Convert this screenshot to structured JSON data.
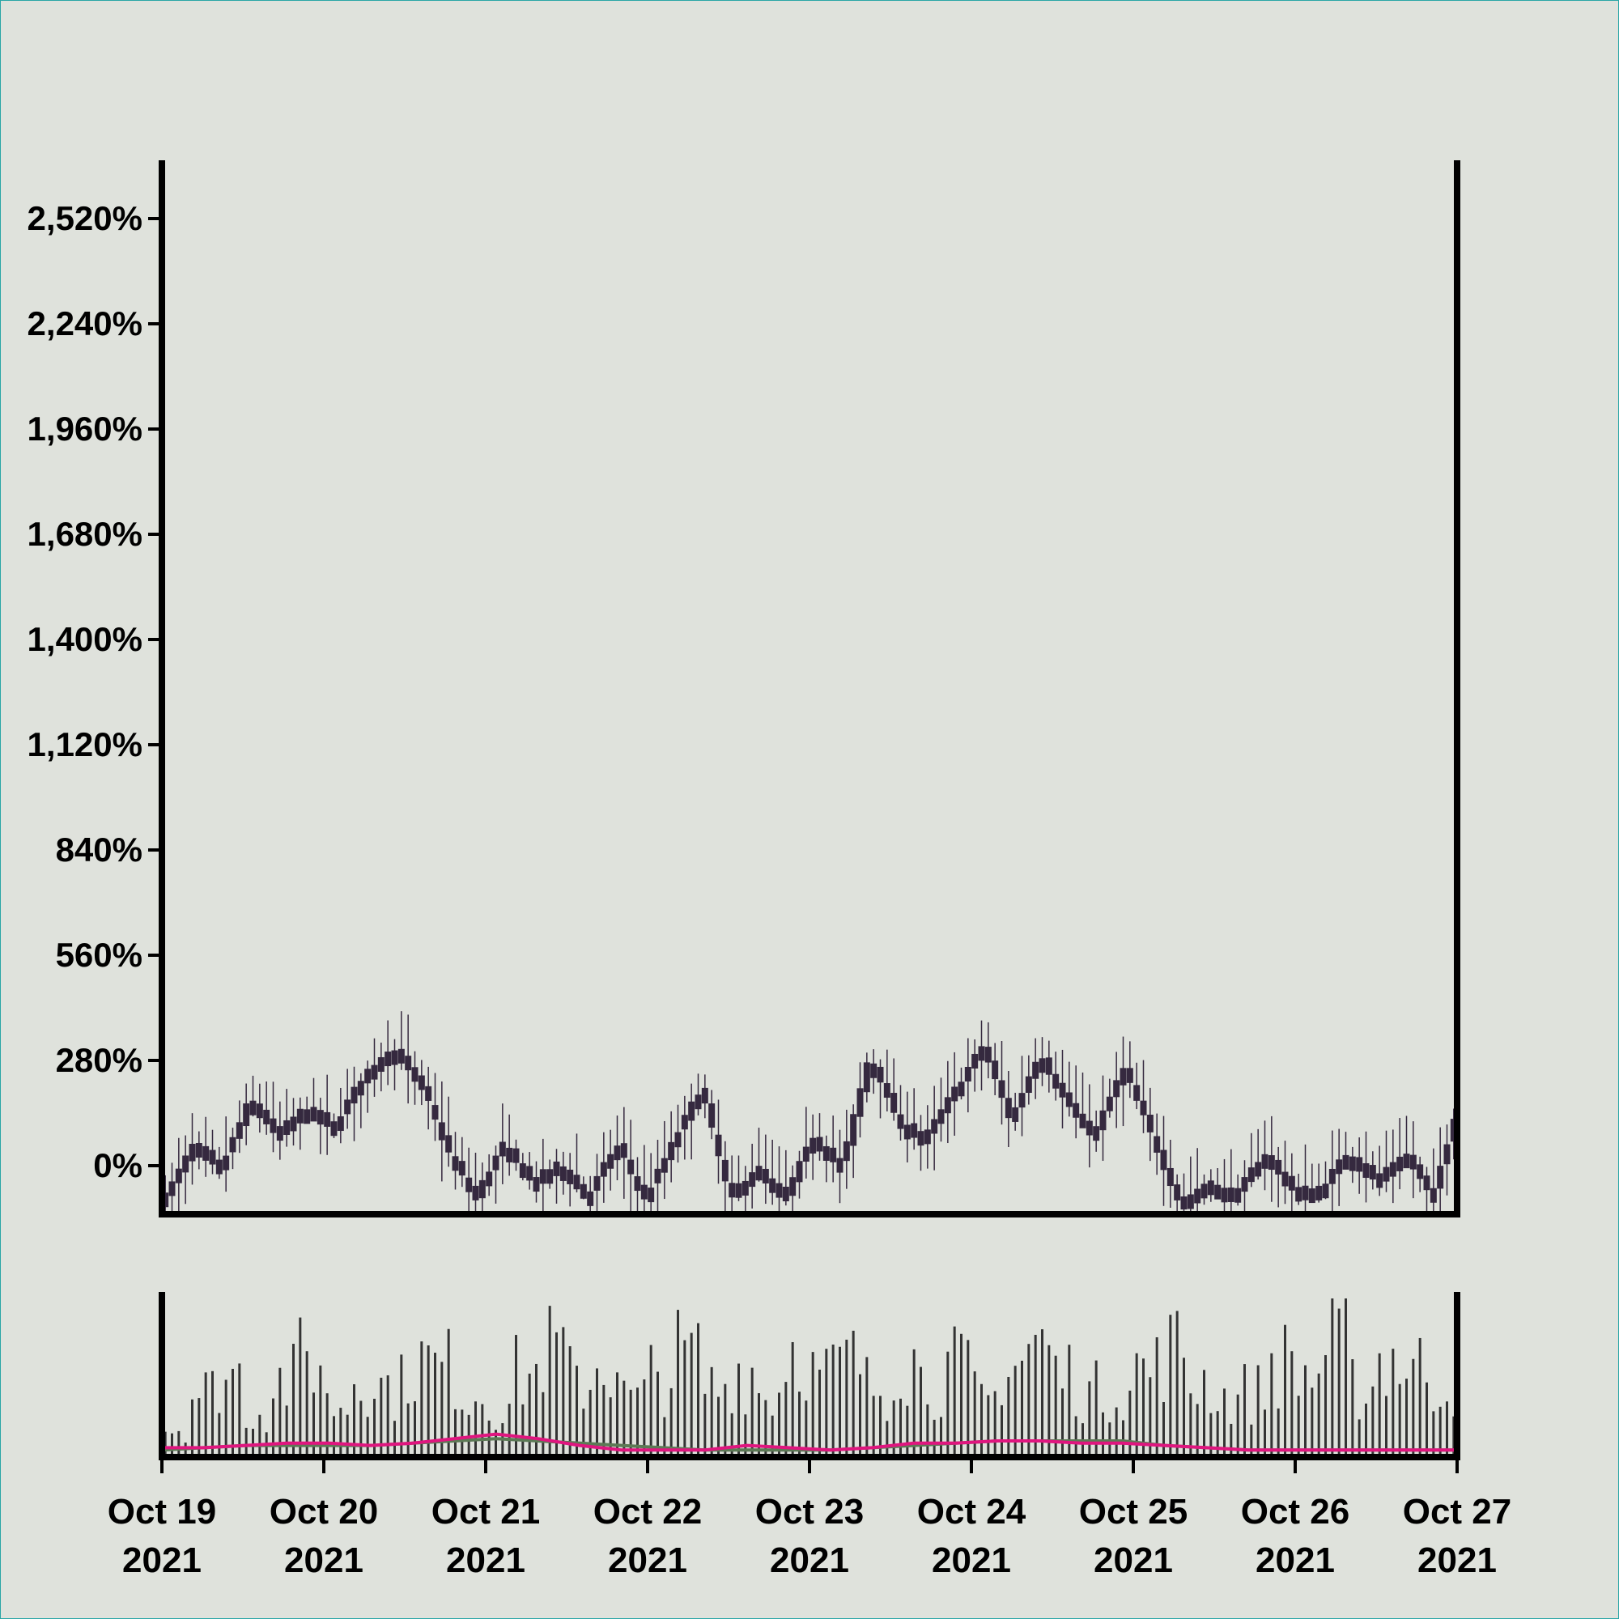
{
  "chart_data": [
    {
      "type": "candlestick",
      "title": "",
      "xlabel": "",
      "ylabel": "",
      "y_unit": "%",
      "ylim": [
        -150,
        2660
      ],
      "xlim": [
        "2021-10-19",
        "2021-10-27"
      ],
      "yticks": [
        0,
        280,
        560,
        840,
        1120,
        1400,
        1680,
        1960,
        2240,
        2520
      ],
      "ytick_labels": [
        "0%",
        "280%",
        "560%",
        "840%",
        "1,120%",
        "1,400%",
        "1,680%",
        "1,960%",
        "2,240%",
        "2,520%"
      ],
      "xtick_labels": [
        [
          "Oct 19",
          "2021"
        ],
        [
          "Oct 20",
          "2021"
        ],
        [
          "Oct 21",
          "2021"
        ],
        [
          "Oct 22",
          "2021"
        ],
        [
          "Oct 23",
          "2021"
        ],
        [
          "Oct 24",
          "2021"
        ],
        [
          "Oct 25",
          "2021"
        ],
        [
          "Oct 26",
          "2021"
        ],
        [
          "Oct 27",
          "2021"
        ]
      ],
      "grid": false,
      "colors": {
        "candle": "#35293f",
        "wick": "#35293f"
      },
      "series_note": "hourly OHLC candles; close level follows the sampled path below (percent)",
      "close_path": [
        {
          "x": "2021-10-19 00:00",
          "y": -80
        },
        {
          "x": "2021-10-19 06:00",
          "y": 60
        },
        {
          "x": "2021-10-19 12:00",
          "y": 0
        },
        {
          "x": "2021-10-19 20:00",
          "y": 180
        },
        {
          "x": "2021-10-20 04:00",
          "y": 90
        },
        {
          "x": "2021-10-20 12:00",
          "y": 160
        },
        {
          "x": "2021-10-20 18:00",
          "y": 110
        },
        {
          "x": "2021-10-21 02:00",
          "y": 240
        },
        {
          "x": "2021-10-21 08:00",
          "y": 320
        },
        {
          "x": "2021-10-21 14:00",
          "y": 230
        },
        {
          "x": "2021-10-21 20:00",
          "y": 40
        },
        {
          "x": "2021-10-22 02:00",
          "y": -80
        },
        {
          "x": "2021-10-22 06:00",
          "y": 60
        },
        {
          "x": "2021-10-22 12:00",
          "y": -40
        },
        {
          "x": "2021-10-22 18:00",
          "y": 10
        },
        {
          "x": "2021-10-23 00:00",
          "y": -80
        },
        {
          "x": "2021-10-23 06:00",
          "y": 60
        },
        {
          "x": "2021-10-23 12:00",
          "y": -90
        },
        {
          "x": "2021-10-23 18:00",
          "y": 60
        },
        {
          "x": "2021-10-24 00:00",
          "y": 210
        },
        {
          "x": "2021-10-24 06:00",
          "y": -80
        },
        {
          "x": "2021-10-24 12:00",
          "y": 0
        },
        {
          "x": "2021-10-24 18:00",
          "y": -80
        },
        {
          "x": "2021-10-25 00:00",
          "y": 80
        },
        {
          "x": "2021-10-25 06:00",
          "y": 0
        },
        {
          "x": "2021-10-25 12:00",
          "y": 300
        },
        {
          "x": "2021-10-25 18:00",
          "y": 120
        },
        {
          "x": "2021-10-26 00:00",
          "y": 80
        },
        {
          "x": "2021-10-26 06:00",
          "y": 200
        },
        {
          "x": "2021-10-26 12:00",
          "y": 320
        },
        {
          "x": "2021-10-26 18:00",
          "y": 120
        },
        {
          "x": "2021-10-27 00:00",
          "y": 300
        },
        {
          "x": "2021-10-27 06:00",
          "y": 170
        },
        {
          "x": "2021-10-27 12:00",
          "y": 90
        },
        {
          "x": "2021-10-27 18:00",
          "y": 260
        },
        {
          "x": "2021-10-28 00:00",
          "y": 80
        },
        {
          "x": "2021-10-28 06:00",
          "y": -100
        },
        {
          "x": "2021-10-28 12:00",
          "y": -40
        },
        {
          "x": "2021-10-28 18:00",
          "y": -80
        },
        {
          "x": "2021-10-29 00:00",
          "y": 40
        },
        {
          "x": "2021-10-29 06:00",
          "y": -60
        },
        {
          "x": "2021-10-29 12:00",
          "y": -60
        },
        {
          "x": "2021-10-29 18:00",
          "y": 40
        },
        {
          "x": "2021-10-30 00:00",
          "y": -30
        },
        {
          "x": "2021-10-30 06:00",
          "y": 40
        },
        {
          "x": "2021-10-30 12:00",
          "y": -80
        },
        {
          "x": "2021-10-30 18:00",
          "y": 200
        }
      ]
    },
    {
      "type": "bar",
      "title": "",
      "xlabel": "",
      "ylabel": "",
      "ylim": [
        0,
        100
      ],
      "colors": {
        "bar": "#333333",
        "line_pink": "#e0157f",
        "line_green": "#5c7a55"
      },
      "series_note": "hourly volume bars with two overlaid moving-average lines",
      "volume_levels": [
        25,
        55,
        70,
        40,
        65,
        85,
        45,
        70,
        60,
        80,
        75,
        55,
        45,
        70,
        90,
        65,
        80,
        50,
        70,
        85,
        60,
        75,
        55,
        95,
        70,
        80,
        60,
        85,
        65,
        75,
        50,
        80,
        95,
        70,
        55,
        60,
        75,
        90,
        65,
        50,
        55,
        80,
        70,
        95,
        60,
        85,
        75,
        65
      ],
      "ma_pink": [
        2,
        2,
        3,
        4,
        4,
        3,
        4,
        6,
        8,
        6,
        3,
        1,
        1,
        1,
        3,
        2,
        1,
        2,
        4,
        4,
        5,
        5,
        4,
        4,
        3,
        2,
        1,
        1,
        1,
        1,
        1,
        1
      ],
      "ma_green": [
        1,
        2,
        3,
        3,
        3,
        3,
        4,
        5,
        6,
        5,
        4,
        3,
        2,
        1,
        1,
        1,
        1,
        2,
        3,
        4,
        5,
        5,
        5,
        5,
        3,
        2,
        1,
        1,
        1,
        1,
        1,
        1
      ]
    }
  ]
}
